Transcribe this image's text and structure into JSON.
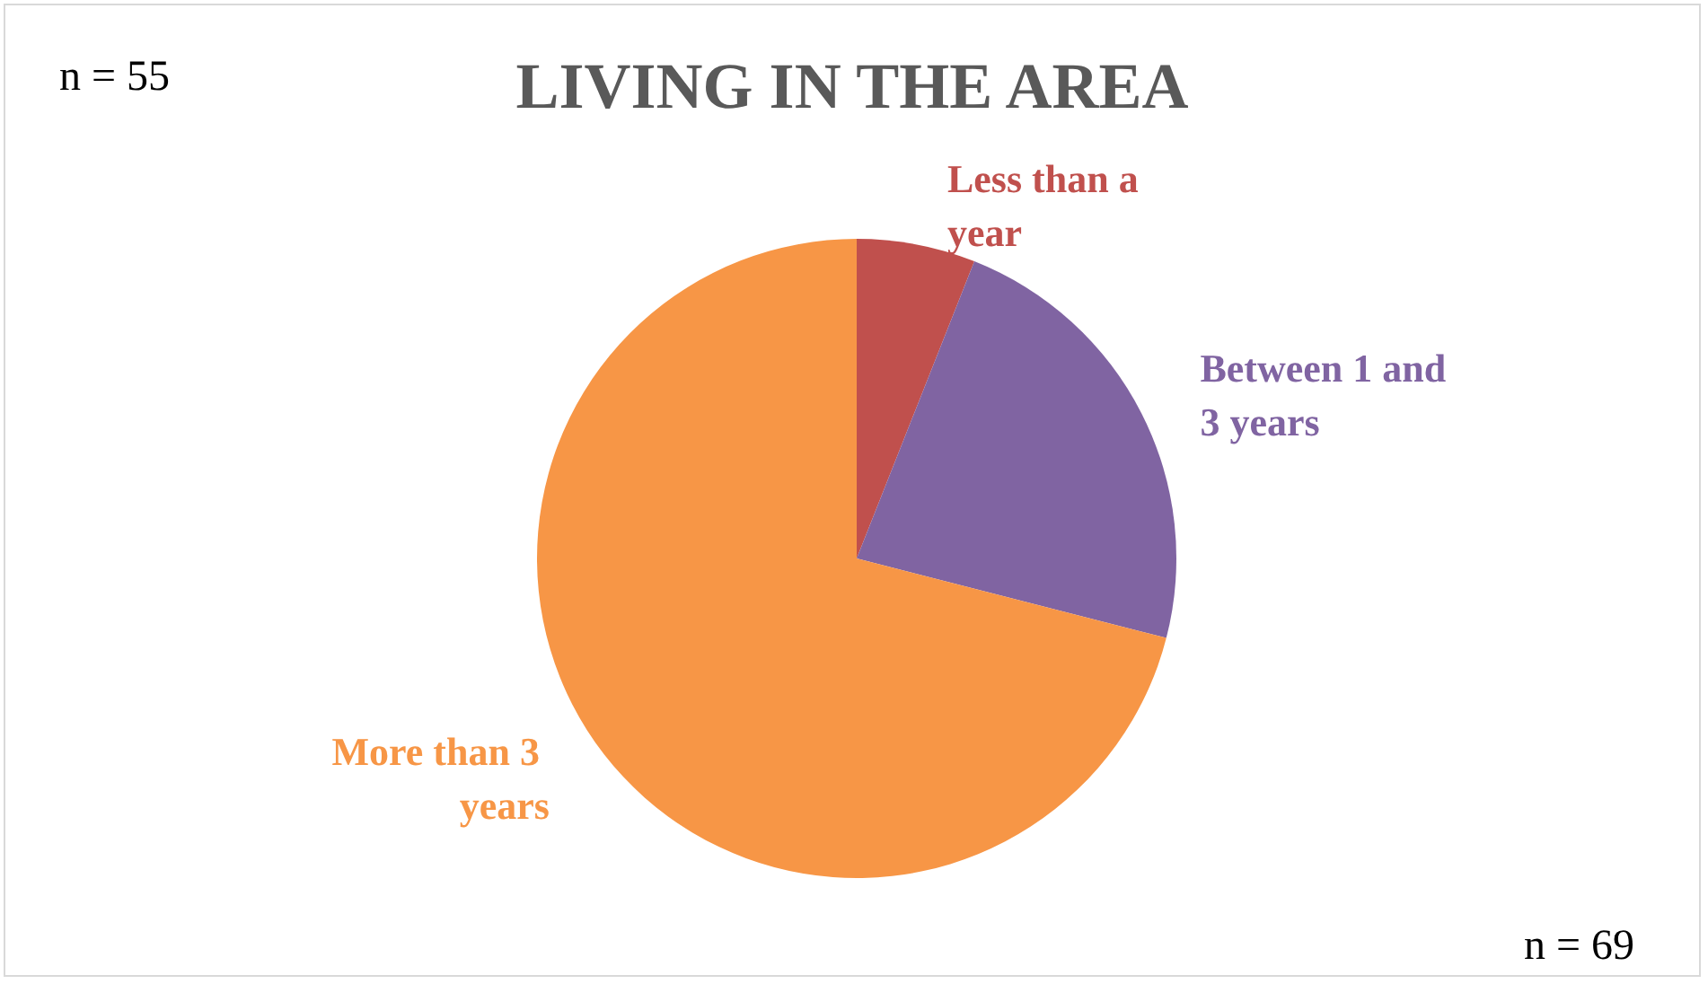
{
  "chart_data": {
    "type": "pie",
    "title": "LIVING IN THE AREA",
    "categories": [
      "Less than a year",
      "Between 1 and 3 years",
      "More than 3 years"
    ],
    "values": [
      6,
      23,
      71
    ],
    "colors": [
      "#c0504d",
      "#8064a2",
      "#f79646"
    ],
    "annotations": [
      "n = 55",
      "n = 69"
    ],
    "legend": false
  }
}
